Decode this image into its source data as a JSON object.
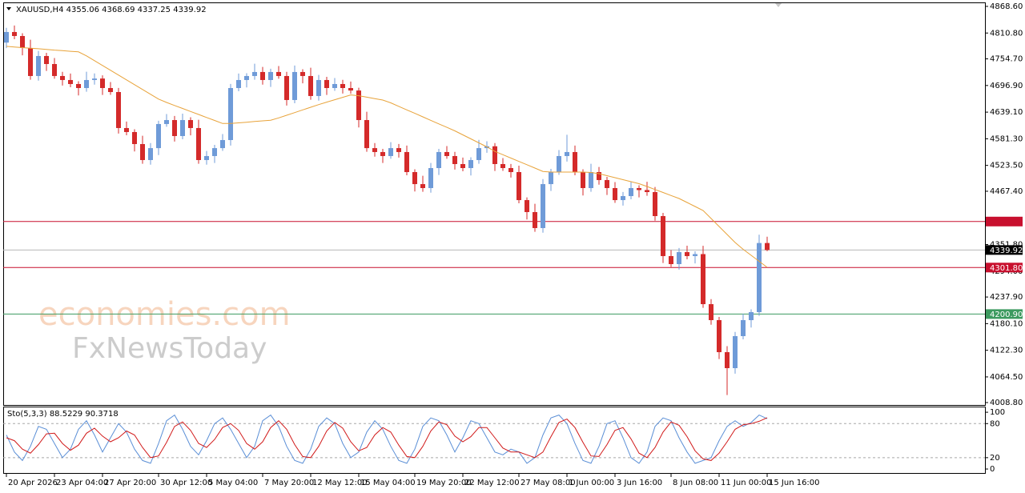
{
  "chart_data": [
    {
      "type": "candlestick",
      "header": "XAUUSD,H4  4355.06 4368.69 4337.25 4339.92",
      "categories": [
        "20 Apr 2026",
        null,
        null,
        null,
        null,
        null,
        "23 Apr 04:00",
        null,
        null,
        null,
        null,
        null,
        "27 Apr 20:00",
        null,
        null,
        null,
        null,
        null,
        null,
        "30 Apr 12:00",
        null,
        null,
        null,
        null,
        null,
        "5 May 04:00",
        null,
        null,
        null,
        null,
        null,
        null,
        "7 May 20:00",
        null,
        null,
        null,
        null,
        null,
        "12 May 12:00",
        null,
        null,
        null,
        null,
        null,
        "15 May 04:00",
        null,
        null,
        null,
        null,
        null,
        null,
        "19 May 20:00",
        null,
        null,
        null,
        null,
        null,
        "22 May 12:00",
        null,
        null,
        null,
        null,
        null,
        null,
        "27 May 08:00",
        null,
        null,
        null,
        null,
        null,
        "1 Jun 00:00",
        null,
        null,
        null,
        null,
        null,
        "3 Jun 16:00",
        null,
        null,
        null,
        null,
        null,
        null,
        "8 Jun 08:00",
        null,
        null,
        null,
        null,
        null,
        "11 Jun 00:00",
        null,
        null,
        null,
        null,
        null,
        "15 Jun 16:00"
      ],
      "open": [
        4790.0,
        4813.0,
        4804.3,
        4778.3,
        4717.5,
        4760.9,
        4743.5,
        4717.5,
        4708.8,
        4700.1,
        4691.4,
        4708.8,
        4712.0,
        4691.4,
        4682.7,
        4604.6,
        4595.9,
        4569.8,
        4535.1,
        4561.0,
        4613.3,
        4621.9,
        4587.2,
        4621.9,
        4604.6,
        4535.1,
        4543.8,
        4561.0,
        4578.5,
        4691.4,
        4708.8,
        4717.5,
        4726.2,
        4708.8,
        4726.2,
        4717.5,
        4665.4,
        4726.2,
        4717.5,
        4674.1,
        4708.8,
        4691.4,
        4700.1,
        4691.4,
        4686.0,
        4621.9,
        4561.0,
        4552.5,
        4543.8,
        4561.0,
        4552.5,
        4509.0,
        4482.9,
        4474.3,
        4517.7,
        4552.5,
        4543.8,
        4526.4,
        4517.7,
        4535.1,
        4561.0,
        4565.0,
        4526.4,
        4517.7,
        4509.0,
        4448.2,
        4422.2,
        4387.5,
        4482.9,
        4509.0,
        4543.8,
        4552.5,
        4509.0,
        4474.3,
        4509.0,
        4491.7,
        4474.3,
        4448.2,
        4456.9,
        4474.3,
        4470.0,
        4465.6,
        4413.5,
        4326.7,
        4309.3,
        4335.3,
        4326.7,
        4331.0,
        4222.4,
        4187.7,
        4118.2,
        4083.5,
        4153.0,
        4187.7,
        4205.1,
        4355.06
      ],
      "high": [
        4822.0,
        4827.0,
        4810.3,
        4796.3,
        4771.9,
        4767.9,
        4756.5,
        4726.5,
        4722.8,
        4706.1,
        4726.8,
        4723.0,
        4719.0,
        4704.4,
        4691.7,
        4618.6,
        4601.9,
        4587.8,
        4572.0,
        4620.3,
        4634.9,
        4630.9,
        4635.9,
        4627.9,
        4622.6,
        4554.8,
        4568.0,
        4591.5,
        4700.4,
        4722.8,
        4723.5,
        4744.2,
        4737.2,
        4733.2,
        4739.2,
        4726.5,
        4740.2,
        4732.2,
        4735.5,
        4719.8,
        4715.8,
        4713.1,
        4709.1,
        4705.4,
        4692.0,
        4639.9,
        4572.0,
        4559.5,
        4574.0,
        4570.0,
        4566.5,
        4515.0,
        4500.9,
        4528.7,
        4559.5,
        4565.5,
        4552.8,
        4540.4,
        4541.1,
        4579.0,
        4576.0,
        4572.0,
        4539.4,
        4526.7,
        4523.0,
        4454.2,
        4440.2,
        4493.9,
        4516.0,
        4556.8,
        4590.0,
        4566.5,
        4515.0,
        4527.0,
        4520.0,
        4498.7,
        4487.3,
        4465.9,
        4488.3,
        4480.3,
        4488.0,
        4476.6,
        4420.5,
        4339.7,
        4344.3,
        4349.3,
        4337.0,
        4349.0,
        4233.4,
        4194.7,
        4131.2,
        4162.0,
        4201.7,
        4211.1,
        4373.1,
        4368.69
      ],
      "low": [
        4778.0,
        4797.3,
        4762.3,
        4709.5,
        4707.5,
        4728.5,
        4711.5,
        4696.8,
        4693.1,
        4675.4,
        4683.4,
        4698.8,
        4676.4,
        4676.7,
        4592.6,
        4588.9,
        4553.8,
        4527.1,
        4525.1,
        4546.0,
        4607.3,
        4575.2,
        4580.2,
        4588.6,
        4527.1,
        4525.1,
        4528.8,
        4555.0,
        4566.5,
        4684.4,
        4692.8,
        4709.5,
        4698.8,
        4693.8,
        4711.5,
        4653.4,
        4658.4,
        4701.5,
        4666.1,
        4664.1,
        4676.4,
        4685.4,
        4679.4,
        4679.0,
        4605.9,
        4553.0,
        4542.5,
        4528.8,
        4537.8,
        4540.5,
        4502.0,
        4466.9,
        4466.3,
        4464.3,
        4502.7,
        4537.8,
        4514.4,
        4510.7,
        4501.7,
        4527.1,
        4551.0,
        4511.4,
        4511.7,
        4497.0,
        4441.2,
        4406.2,
        4379.5,
        4377.5,
        4467.9,
        4503.0,
        4531.8,
        4502.0,
        4458.3,
        4466.3,
        4481.7,
        4459.3,
        4442.2,
        4436.2,
        4449.9,
        4454.0,
        4457.6,
        4403.5,
        4311.7,
        4303.3,
        4297.3,
        4319.7,
        4310.7,
        4214.4,
        4177.7,
        4103.2,
        4025.0,
        4071.5,
        4146.0,
        4171.7,
        4197.1,
        4337.25
      ],
      "close": [
        4813.0,
        4804.3,
        4778.3,
        4717.5,
        4760.9,
        4743.5,
        4717.5,
        4708.8,
        4700.1,
        4691.4,
        4708.8,
        4712.0,
        4691.4,
        4682.7,
        4604.6,
        4595.9,
        4569.8,
        4535.1,
        4561.0,
        4613.3,
        4621.9,
        4587.2,
        4621.9,
        4604.6,
        4535.1,
        4543.8,
        4561.0,
        4578.5,
        4691.4,
        4708.8,
        4717.5,
        4726.2,
        4708.8,
        4726.2,
        4717.5,
        4665.4,
        4726.2,
        4717.5,
        4674.1,
        4708.8,
        4691.4,
        4700.1,
        4691.4,
        4686.0,
        4621.9,
        4561.0,
        4552.5,
        4543.8,
        4561.0,
        4552.5,
        4509.0,
        4482.9,
        4474.3,
        4517.7,
        4552.5,
        4543.8,
        4526.4,
        4517.7,
        4535.1,
        4561.0,
        4565.0,
        4526.4,
        4517.7,
        4509.0,
        4448.2,
        4422.2,
        4387.5,
        4482.9,
        4509.0,
        4543.8,
        4552.5,
        4509.0,
        4474.3,
        4509.0,
        4491.7,
        4474.3,
        4448.2,
        4456.9,
        4474.3,
        4470.0,
        4465.6,
        4413.5,
        4326.7,
        4309.3,
        4335.3,
        4326.7,
        4331.0,
        4222.4,
        4187.7,
        4118.2,
        4083.5,
        4153.0,
        4187.7,
        4205.1,
        4355.06,
        4339.92
      ],
      "up_color": "#6f9bd8",
      "down_color": "#d42a2a",
      "ma": {
        "color": "#e8a33a",
        "values": [
          4781.8,
          4780.4,
          4779.1,
          4777.8,
          4776.6,
          4775.2,
          4773.8,
          4772.6,
          4771.2,
          4769.9,
          4761.3,
          4750.8,
          4740.4,
          4730.0,
          4719.6,
          4709.1,
          4698.7,
          4688.3,
          4677.9,
          4667.4,
          4660.2,
          4653.6,
          4647.1,
          4640.5,
          4634.1,
          4627.5,
          4621.1,
          4614.5,
          4614.5,
          4615.9,
          4617.3,
          4618.8,
          4620.2,
          4621.6,
          4626.6,
          4632.4,
          4638.1,
          4644.0,
          4649.7,
          4655.5,
          4660.8,
          4666.1,
          4671.3,
          4676.5,
          4674.7,
          4671.6,
          4668.3,
          4665.4,
          4659.3,
          4651.7,
          4644.0,
          4636.5,
          4628.9,
          4621.3,
          4613.6,
          4606.1,
          4598.5,
          4589.8,
          4581.1,
          4572.5,
          4563.8,
          4553.9,
          4546.8,
          4539.4,
          4532.1,
          4525.0,
          4517.7,
          4510.4,
          4509.0,
          4509.0,
          4509.0,
          4509.0,
          4509.0,
          4508.2,
          4505.6,
          4501.2,
          4496.9,
          4492.5,
          4488.2,
          4483.8,
          4477.7,
          4471.1,
          4464.7,
          4458.1,
          4451.7,
          4443.0,
          4434.4,
          4425.7,
          4408.3,
          4391.0,
          4373.6,
          4356.2,
          4341.4,
          4328.4,
          4315.4,
          4302.3
        ]
      },
      "ylim": [
        4003.6,
        4875.5
      ],
      "yticks": [
        {
          "value": 4868.6,
          "label": "4868.60"
        },
        {
          "value": 4810.8,
          "label": "4810.80"
        },
        {
          "value": 4754.7,
          "label": "4754.70"
        },
        {
          "value": 4696.9,
          "label": "4696.90"
        },
        {
          "value": 4639.1,
          "label": "4639.10"
        },
        {
          "value": 4581.3,
          "label": "4581.30"
        },
        {
          "value": 4523.5,
          "label": "4523.50"
        },
        {
          "value": 4467.4,
          "label": "4467.40"
        },
        {
          "value": 4351.8,
          "label": "4351.80"
        },
        {
          "value": 4294,
          "label": "4294.00"
        },
        {
          "value": 4237.9,
          "label": "4237.90"
        },
        {
          "value": 4180.1,
          "label": "4180.10"
        },
        {
          "value": 4122.3,
          "label": "4122.30"
        },
        {
          "value": 4064.5,
          "label": "4064.50"
        },
        {
          "value": 4008.8,
          "label": "4008.80"
        }
      ],
      "levels": [
        {
          "value": 4401.69,
          "color": "#c8102e"
        },
        {
          "value": 4301.8,
          "label": "4301.80",
          "color": "#c8102e"
        },
        {
          "value": 4200.9,
          "label": "4200.90",
          "color": "#3c9a5f"
        }
      ],
      "price_line": {
        "value": 4339.92,
        "color": "#b8b8b8"
      },
      "watermark": [
        "economies.com",
        "FxNewsToday"
      ]
    },
    {
      "type": "line",
      "header": "Sto(5,3,3) 88.5229 90.3718",
      "series": [
        {
          "color": "#5b8fd6",
          "values": [
            60,
            30,
            15,
            40,
            75,
            70,
            45,
            20,
            35,
            70,
            85,
            60,
            30,
            55,
            80,
            65,
            35,
            15,
            10,
            45,
            85,
            95,
            70,
            40,
            25,
            50,
            80,
            90,
            70,
            45,
            20,
            40,
            85,
            95,
            75,
            40,
            15,
            10,
            35,
            75,
            90,
            80,
            45,
            20,
            30,
            65,
            85,
            70,
            40,
            15,
            10,
            35,
            75,
            90,
            85,
            60,
            30,
            55,
            85,
            80,
            55,
            30,
            25,
            35,
            30,
            10,
            20,
            60,
            90,
            95,
            80,
            45,
            15,
            10,
            40,
            80,
            85,
            55,
            20,
            10,
            30,
            75,
            90,
            85,
            55,
            30,
            10,
            15,
            20,
            50,
            75,
            85,
            75,
            82,
            95,
            88.5229
          ]
        },
        {
          "color": "#d11a1a",
          "values": [
            55,
            50,
            35,
            28,
            43,
            62,
            63,
            45,
            33,
            42,
            63,
            72,
            58,
            48,
            55,
            67,
            60,
            38,
            20,
            23,
            47,
            75,
            83,
            68,
            45,
            38,
            52,
            73,
            80,
            68,
            45,
            35,
            48,
            73,
            85,
            70,
            43,
            22,
            20,
            40,
            67,
            82,
            72,
            48,
            32,
            38,
            60,
            73,
            65,
            42,
            22,
            20,
            40,
            67,
            83,
            78,
            58,
            48,
            57,
            73,
            73,
            55,
            37,
            30,
            30,
            25,
            20,
            30,
            57,
            82,
            88,
            73,
            47,
            23,
            22,
            43,
            68,
            73,
            53,
            28,
            20,
            38,
            65,
            83,
            77,
            57,
            32,
            18,
            15,
            28,
            48,
            70,
            78,
            80,
            84,
            90.3718
          ]
        }
      ],
      "ylim": [
        -7,
        110
      ],
      "yticks": [
        100,
        80,
        20,
        0
      ],
      "levels": [
        80,
        20
      ]
    }
  ]
}
